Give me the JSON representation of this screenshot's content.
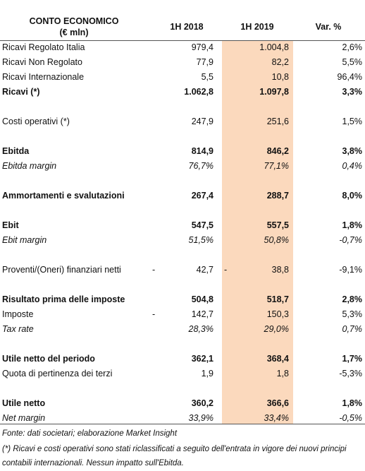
{
  "header": {
    "title": [
      "CONTO ECONOMICO",
      "(€ mln)"
    ],
    "columns": [
      "1H 2018",
      "1H 2019",
      "Var. %"
    ]
  },
  "table": {
    "sections": [
      [
        {
          "label": "Ricavi Regolato Italia",
          "values": [
            "979,4",
            "1.004,8",
            "2,6%"
          ],
          "style": "normal"
        },
        {
          "label": "Ricavi Non Regolato",
          "values": [
            "77,9",
            "82,2",
            "5,5%"
          ],
          "style": "normal"
        },
        {
          "label": "Ricavi Internazionale",
          "values": [
            "5,5",
            "10,8",
            "96,4%"
          ],
          "style": "normal"
        },
        {
          "label": "Ricavi (*)",
          "values": [
            "1.062,8",
            "1.097,8",
            "3,3%"
          ],
          "style": "bold"
        }
      ],
      [
        {
          "label": "Costi operativi (*)",
          "values": [
            "247,9",
            "251,6",
            "1,5%"
          ],
          "style": "normal"
        }
      ],
      [
        {
          "label": "Ebitda",
          "values": [
            "814,9",
            "846,2",
            "3,8%"
          ],
          "style": "bold"
        },
        {
          "label": "Ebitda margin",
          "values": [
            "76,7%",
            "77,1%",
            "0,4%"
          ],
          "style": "italic"
        }
      ],
      [
        {
          "label": "Ammortamenti e svalutazioni",
          "values": [
            "267,4",
            "288,7",
            "8,0%"
          ],
          "style": "bold"
        }
      ],
      [
        {
          "label": "Ebit",
          "values": [
            "547,5",
            "557,5",
            "1,8%"
          ],
          "style": "bold"
        },
        {
          "label": "Ebit margin",
          "values": [
            "51,5%",
            "50,8%",
            "-0,7%"
          ],
          "style": "italic"
        }
      ],
      [
        {
          "label": "Proventi/(Oneri) finanziari netti",
          "values": [
            "42,7",
            "38,8",
            "-9,1%"
          ],
          "signs": [
            "-",
            "-"
          ],
          "style": "normal"
        }
      ],
      [
        {
          "label": "Risultato prima delle imposte",
          "values": [
            "504,8",
            "518,7",
            "2,8%"
          ],
          "style": "bold"
        },
        {
          "label": "Imposte",
          "values": [
            "142,7",
            "150,3",
            "5,3%"
          ],
          "signs": [
            "-"
          ],
          "style": "normal"
        },
        {
          "label": "Tax rate",
          "values": [
            "28,3%",
            "29,0%",
            "0,7%"
          ],
          "style": "italic"
        }
      ],
      [
        {
          "label": "Utile netto del periodo",
          "values": [
            "362,1",
            "368,4",
            "1,7%"
          ],
          "style": "bold"
        },
        {
          "label": "Quota di pertinenza dei terzi",
          "values": [
            "1,9",
            "1,8",
            "-5,3%"
          ],
          "style": "normal"
        }
      ],
      [
        {
          "label": "Utile netto",
          "values": [
            "360,2",
            "366,6",
            "1,8%"
          ],
          "style": "bold"
        },
        {
          "label": "Net margin",
          "values": [
            "33,9%",
            "33,4%",
            "-0,5%"
          ],
          "style": "italic"
        }
      ]
    ]
  },
  "footer": {
    "source": "Fonte: dati societari; elaborazione Market Insight",
    "note": "(*) Ricavi e costi operativi sono stati riclassificati a seguito dell'entrata in vigore dei nuovi principi contabili internazionali. Nessun impatto sull'Ebitda."
  }
}
